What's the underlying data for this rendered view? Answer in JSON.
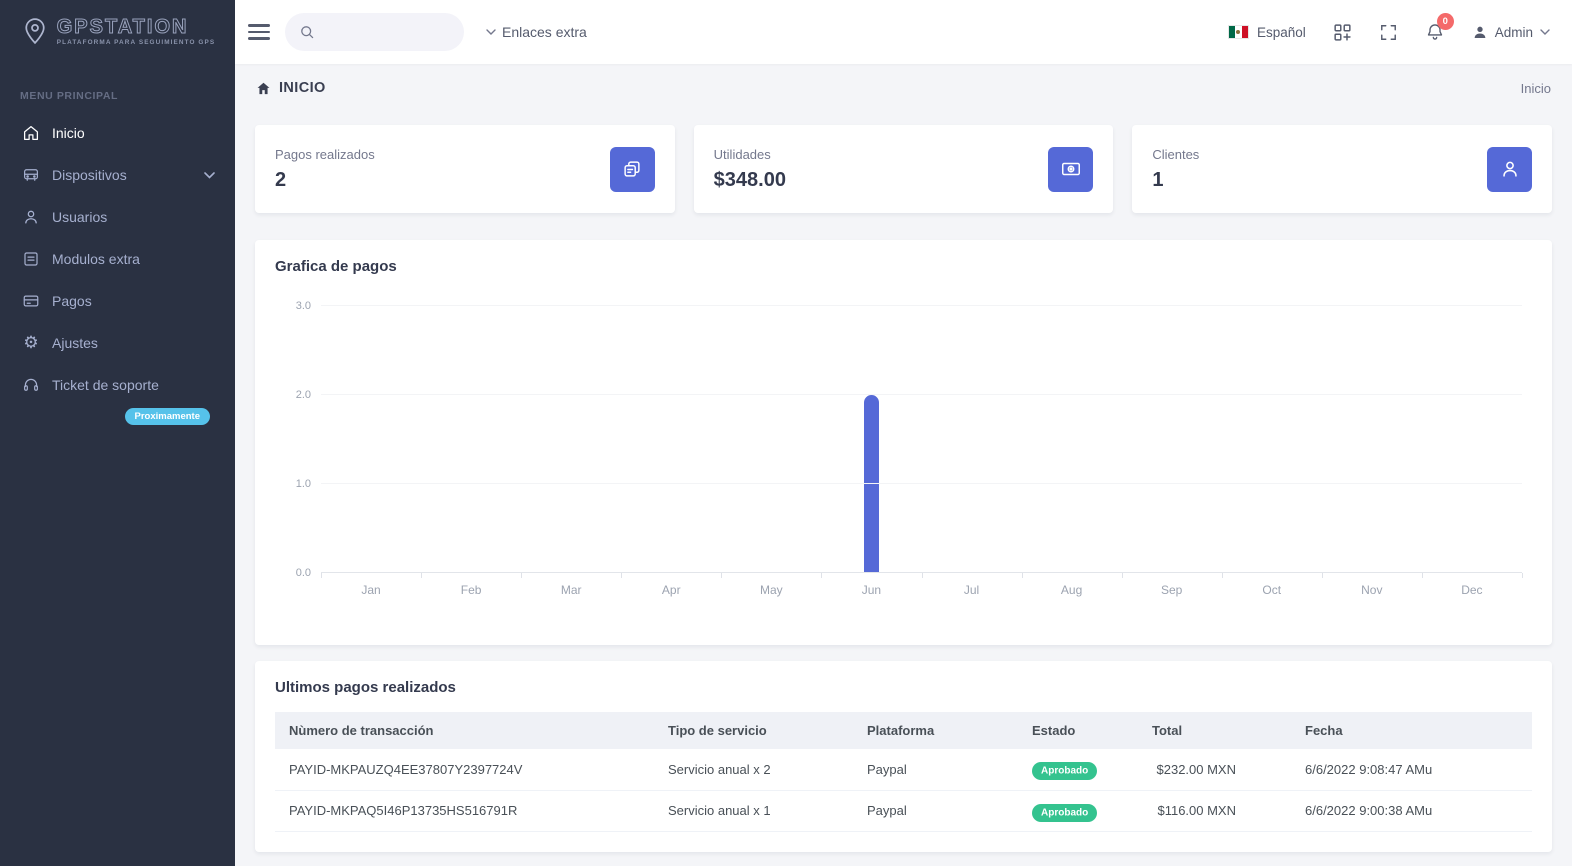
{
  "app": {
    "name": "GPSTATION",
    "tagline": "PLATAFORMA PARA SEGUIMIENTO GPS"
  },
  "sidebar": {
    "section_label": "MENU PRINCIPAL",
    "items": [
      {
        "label": "Inicio",
        "icon": "home-icon",
        "active": true
      },
      {
        "label": "Dispositivos",
        "icon": "car-icon",
        "has_submenu": true
      },
      {
        "label": "Usuarios",
        "icon": "user-icon"
      },
      {
        "label": "Modulos extra",
        "icon": "file-list-icon"
      },
      {
        "label": "Pagos",
        "icon": "credit-card-icon"
      },
      {
        "label": "Ajustes",
        "icon": "gear-icon"
      },
      {
        "label": "Ticket de soporte",
        "icon": "headset-icon",
        "badge": "Proximamente"
      }
    ]
  },
  "topbar": {
    "links_dropdown": "Enlaces extra",
    "language": "Español",
    "notification_count": "0",
    "user": "Admin"
  },
  "page": {
    "title": "INICIO",
    "breadcrumb": "Inicio"
  },
  "stats": [
    {
      "label": "Pagos realizados",
      "value": "2",
      "icon": "copy-icon"
    },
    {
      "label": "Utilidades",
      "value": "$348.00",
      "icon": "cash-icon"
    },
    {
      "label": "Clientes",
      "value": "1",
      "icon": "user-icon"
    }
  ],
  "chart_panel": {
    "title": "Grafica de pagos"
  },
  "chart_data": {
    "type": "bar",
    "title": "Grafica de pagos",
    "categories": [
      "Jan",
      "Feb",
      "Mar",
      "Apr",
      "May",
      "Jun",
      "Jul",
      "Aug",
      "Sep",
      "Oct",
      "Nov",
      "Dec"
    ],
    "values": [
      0,
      0,
      0,
      0,
      0,
      2,
      0,
      0,
      0,
      0,
      0,
      0
    ],
    "xlabel": "",
    "ylabel": "",
    "ylim": [
      0,
      3
    ],
    "yticks": [
      "0.0",
      "1.0",
      "2.0",
      "3.0"
    ],
    "grid": true,
    "legend": false,
    "bar_color": "#5569d7"
  },
  "table": {
    "title": "Ultimos pagos realizados",
    "columns": [
      "Nùmero de transacción",
      "Tipo de servicio",
      "Plataforma",
      "Estado",
      "Total",
      "Fecha"
    ],
    "rows": [
      {
        "transaction": "PAYID-MKPAUZQ4EE37807Y2397724V",
        "service": "Servicio anual x 2",
        "platform": "Paypal",
        "status": "Aprobado",
        "total": "$232.00 MXN",
        "date": "6/6/2022 9:08:47 AMu"
      },
      {
        "transaction": "PAYID-MKPAQ5I46P13735HS516791R",
        "service": "Servicio anual x 1",
        "platform": "Paypal",
        "status": "Aprobado",
        "total": "$116.00 MXN",
        "date": "6/6/2022 9:00:38 AMu"
      }
    ]
  },
  "colors": {
    "primary": "#5569d7",
    "sidebar_bg": "#2a3142",
    "success": "#34c38f",
    "info_badge": "#56c2ea",
    "danger": "#f46a6a",
    "body_bg": "#f4f5f8"
  }
}
